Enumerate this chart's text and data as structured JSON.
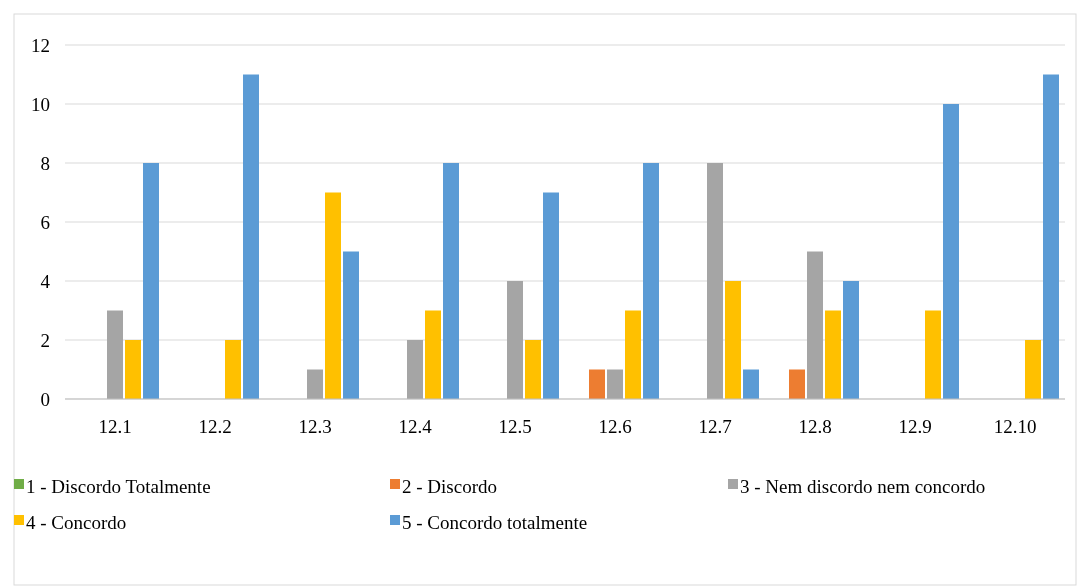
{
  "chart_data": {
    "type": "bar",
    "categories": [
      "12.1",
      "12.2",
      "12.3",
      "12.4",
      "12.5",
      "12.6",
      "12.7",
      "12.8",
      "12.9",
      "12.10"
    ],
    "series": [
      {
        "name": "1 - Discordo Totalmente",
        "color": "#70ad47",
        "values": [
          0,
          0,
          0,
          0,
          0,
          0,
          0,
          0,
          0,
          0
        ]
      },
      {
        "name": "2 - Discordo",
        "color": "#ed7d31",
        "values": [
          0,
          0,
          0,
          0,
          0,
          1,
          0,
          1,
          0,
          0
        ]
      },
      {
        "name": "3 - Nem discordo nem concordo",
        "color": "#a5a5a5",
        "values": [
          3,
          0,
          1,
          2,
          4,
          1,
          8,
          5,
          0,
          0
        ]
      },
      {
        "name": "4 - Concordo",
        "color": "#ffc000",
        "values": [
          2,
          2,
          7,
          3,
          2,
          3,
          4,
          3,
          3,
          2
        ]
      },
      {
        "name": "5 - Concordo totalmente",
        "color": "#5b9bd5",
        "values": [
          8,
          11,
          5,
          8,
          7,
          8,
          1,
          4,
          10,
          11
        ]
      }
    ],
    "ylim": [
      0,
      12
    ],
    "yticks": [
      0,
      2,
      4,
      6,
      8,
      10,
      12
    ],
    "grid": "y",
    "legend": "bottom"
  }
}
